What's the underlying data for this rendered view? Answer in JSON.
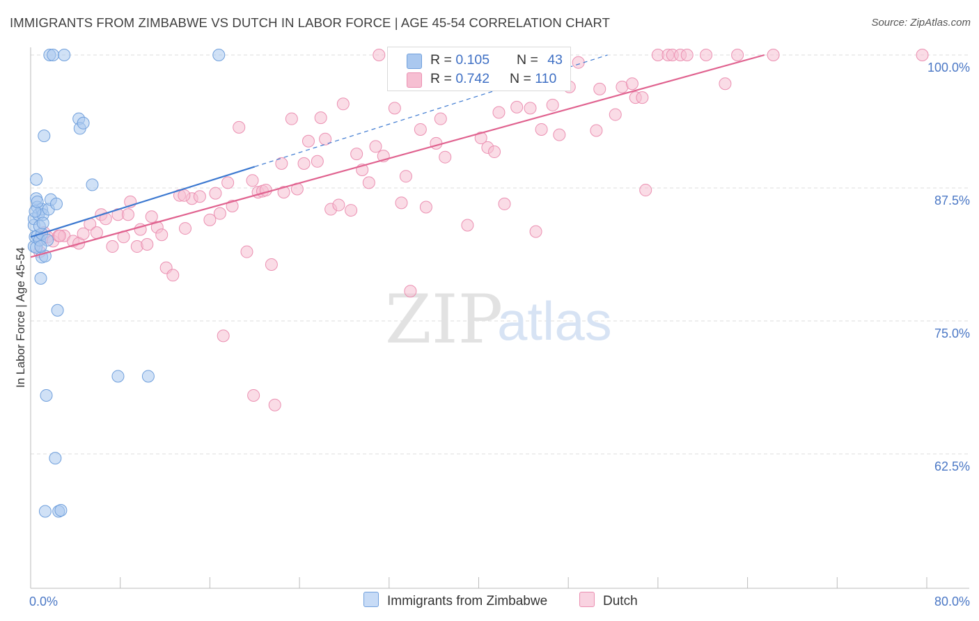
{
  "title": "IMMIGRANTS FROM ZIMBABWE VS DUTCH IN LABOR FORCE | AGE 45-54 CORRELATION CHART",
  "source": "Source: ZipAtlas.com",
  "watermark": {
    "zip": "ZIP",
    "atlas": "atlas"
  },
  "stats": {
    "blue": {
      "r_label": "R = ",
      "r_value": "0.105",
      "n_label": "N = ",
      "n_value": "43"
    },
    "pink": {
      "r_label": "R = ",
      "r_value": "0.742",
      "n_label": "N = ",
      "n_value": "110"
    }
  },
  "legend": {
    "blue": "Immigrants from Zimbabwe",
    "pink": "Dutch"
  },
  "colors": {
    "blue_fill": "#aac8ef",
    "blue_stroke": "#6f9fdc",
    "blue_line": "#3b78d0",
    "pink_fill": "#f6bfd2",
    "pink_stroke": "#eb8fb1",
    "pink_line": "#e0628f",
    "grid": "#dddddd",
    "axis_label": "#4a77c5"
  },
  "chart_data": {
    "type": "scatter",
    "title": "IMMIGRANTS FROM ZIMBABWE VS DUTCH IN LABOR FORCE | AGE 45-54 CORRELATION CHART",
    "xlabel": "",
    "ylabel": "In Labor Force | Age 45-54",
    "xlim": [
      0,
      80
    ],
    "ylim": [
      50,
      102
    ],
    "x_ticks": [
      "0.0%",
      "80.0%"
    ],
    "y_ticks": [
      {
        "value": 62.5,
        "label": "62.5%"
      },
      {
        "value": 75.0,
        "label": "75.0%"
      },
      {
        "value": 87.5,
        "label": "87.5%"
      },
      {
        "value": 100.0,
        "label": "100.0%"
      }
    ],
    "series": [
      {
        "name": "Immigrants from Zimbabwe",
        "color": "blue",
        "points": [
          [
            0.3,
            84.0
          ],
          [
            0.3,
            84.6
          ],
          [
            0.3,
            82.0
          ],
          [
            0.4,
            82.9
          ],
          [
            0.5,
            86.5
          ],
          [
            0.5,
            88.3
          ],
          [
            0.5,
            81.9
          ],
          [
            0.6,
            85.7
          ],
          [
            0.6,
            83.0
          ],
          [
            0.7,
            85.0
          ],
          [
            0.8,
            82.6
          ],
          [
            0.9,
            79.0
          ],
          [
            1.0,
            85.5
          ],
          [
            1.0,
            83.2
          ],
          [
            1.0,
            81.0
          ],
          [
            1.1,
            85.0
          ],
          [
            1.2,
            92.4
          ],
          [
            1.3,
            81.1
          ],
          [
            1.4,
            68.0
          ],
          [
            1.5,
            82.6
          ],
          [
            1.6,
            85.5
          ],
          [
            1.8,
            86.4
          ],
          [
            1.7,
            100.0
          ],
          [
            2.0,
            100.0
          ],
          [
            2.2,
            62.1
          ],
          [
            2.3,
            86.0
          ],
          [
            2.4,
            76.0
          ],
          [
            2.5,
            57.1
          ],
          [
            2.7,
            57.2
          ],
          [
            1.3,
            57.1
          ],
          [
            3.0,
            100.0
          ],
          [
            4.3,
            94.0
          ],
          [
            4.4,
            93.1
          ],
          [
            4.7,
            93.6
          ],
          [
            5.5,
            87.8
          ],
          [
            7.8,
            69.8
          ],
          [
            10.5,
            69.8
          ],
          [
            16.8,
            100.0
          ],
          [
            0.4,
            85.3
          ],
          [
            0.8,
            83.9
          ],
          [
            1.1,
            84.2
          ],
          [
            0.6,
            86.2
          ],
          [
            0.9,
            82.0
          ]
        ],
        "trend": {
          "x": [
            0.0,
            20.0
          ],
          "y": [
            82.9,
            89.5
          ],
          "dashed_extension": {
            "x": [
              20.0,
              51.5
            ],
            "y": [
              89.5,
              100.0
            ]
          }
        }
      },
      {
        "name": "Dutch",
        "color": "pink",
        "points": [
          [
            0.8,
            81.5
          ],
          [
            1.0,
            82.7
          ],
          [
            1.2,
            83.3
          ],
          [
            1.5,
            82.9
          ],
          [
            2.0,
            82.5
          ],
          [
            2.5,
            83.0
          ],
          [
            3.0,
            83.0
          ],
          [
            3.8,
            82.5
          ],
          [
            4.3,
            82.3
          ],
          [
            5.3,
            84.1
          ],
          [
            5.9,
            83.3
          ],
          [
            6.3,
            85.0
          ],
          [
            6.7,
            84.6
          ],
          [
            7.3,
            82.0
          ],
          [
            7.8,
            85.0
          ],
          [
            8.3,
            82.9
          ],
          [
            8.9,
            86.2
          ],
          [
            9.5,
            82.0
          ],
          [
            9.8,
            83.6
          ],
          [
            10.4,
            82.2
          ],
          [
            10.8,
            84.8
          ],
          [
            11.3,
            83.8
          ],
          [
            11.7,
            83.1
          ],
          [
            12.1,
            80.0
          ],
          [
            12.7,
            79.3
          ],
          [
            13.3,
            86.8
          ],
          [
            13.8,
            83.7
          ],
          [
            14.4,
            86.5
          ],
          [
            15.1,
            86.7
          ],
          [
            16.0,
            84.5
          ],
          [
            16.5,
            87.0
          ],
          [
            16.9,
            85.1
          ],
          [
            17.2,
            73.6
          ],
          [
            17.6,
            88.0
          ],
          [
            18.0,
            85.8
          ],
          [
            18.6,
            93.2
          ],
          [
            19.3,
            81.5
          ],
          [
            19.8,
            88.2
          ],
          [
            19.9,
            68.0
          ],
          [
            20.3,
            87.1
          ],
          [
            20.7,
            87.2
          ],
          [
            21.5,
            80.3
          ],
          [
            21.8,
            67.1
          ],
          [
            22.4,
            89.8
          ],
          [
            22.6,
            87.1
          ],
          [
            23.3,
            94.0
          ],
          [
            23.8,
            87.4
          ],
          [
            24.4,
            89.8
          ],
          [
            24.8,
            91.9
          ],
          [
            25.6,
            90.0
          ],
          [
            25.9,
            94.1
          ],
          [
            26.3,
            92.1
          ],
          [
            26.8,
            85.5
          ],
          [
            27.5,
            85.9
          ],
          [
            27.9,
            95.4
          ],
          [
            28.6,
            85.4
          ],
          [
            29.1,
            90.7
          ],
          [
            29.6,
            89.2
          ],
          [
            30.2,
            88.0
          ],
          [
            30.8,
            91.4
          ],
          [
            31.1,
            100.0
          ],
          [
            31.5,
            90.5
          ],
          [
            32.5,
            95.0
          ],
          [
            33.1,
            86.1
          ],
          [
            33.5,
            88.6
          ],
          [
            33.9,
            77.8
          ],
          [
            34.8,
            93.0
          ],
          [
            35.3,
            85.7
          ],
          [
            36.2,
            91.7
          ],
          [
            36.6,
            94.0
          ],
          [
            37.0,
            90.4
          ],
          [
            38.5,
            100.0
          ],
          [
            39.0,
            84.0
          ],
          [
            40.2,
            92.2
          ],
          [
            40.8,
            91.3
          ],
          [
            41.4,
            90.9
          ],
          [
            41.8,
            94.6
          ],
          [
            42.3,
            86.0
          ],
          [
            43.4,
            95.1
          ],
          [
            44.6,
            95.0
          ],
          [
            45.1,
            83.4
          ],
          [
            45.6,
            93.0
          ],
          [
            46.1,
            100.0
          ],
          [
            46.6,
            95.3
          ],
          [
            47.2,
            92.5
          ],
          [
            48.1,
            97.0
          ],
          [
            48.9,
            99.3
          ],
          [
            50.5,
            92.9
          ],
          [
            50.8,
            96.8
          ],
          [
            52.2,
            94.4
          ],
          [
            52.8,
            97.0
          ],
          [
            53.7,
            97.3
          ],
          [
            54.0,
            96.0
          ],
          [
            54.6,
            96.0
          ],
          [
            54.9,
            87.3
          ],
          [
            56.0,
            100.0
          ],
          [
            56.9,
            100.0
          ],
          [
            57.3,
            100.0
          ],
          [
            58.0,
            100.0
          ],
          [
            58.6,
            100.0
          ],
          [
            60.3,
            100.0
          ],
          [
            62.0,
            97.3
          ],
          [
            63.1,
            100.0
          ],
          [
            66.3,
            100.0
          ],
          [
            79.6,
            100.0
          ],
          [
            8.7,
            85.0
          ],
          [
            4.7,
            83.2
          ],
          [
            2.6,
            83.0
          ],
          [
            13.7,
            86.8
          ],
          [
            21.0,
            87.3
          ]
        ],
        "trend": {
          "x": [
            0.0,
            65.5
          ],
          "y": [
            81.0,
            100.0
          ]
        }
      }
    ]
  }
}
